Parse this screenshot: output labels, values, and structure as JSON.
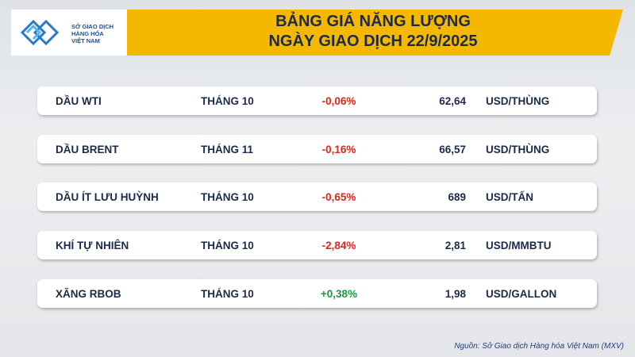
{
  "header": {
    "logo": [
      "SỞ GIAO DỊCH",
      "HÀNG HÓA",
      "VIỆT NAM"
    ],
    "title": [
      "BẢNG GIÁ NĂNG LƯỢNG",
      "NGÀY GIAO DỊCH 22/9/2025"
    ]
  },
  "table": {
    "rows": [
      [
        "DẦU WTI",
        "THÁNG 10",
        "-0,06%",
        "62,64",
        "USD/THÙNG"
      ],
      [
        "DẦU BRENT",
        "THÁNG 11",
        "-0,16%",
        "66,57",
        "USD/THÙNG"
      ],
      [
        "DẦU ÍT LƯU HUỲNH",
        "THÁNG 10",
        "-0,65%",
        "689",
        "USD/TẤN"
      ],
      [
        "KHÍ TỰ NHIÊN",
        "THÁNG 10",
        "-2,84%",
        "2,81",
        "USD/MMBTU"
      ],
      [
        "XĂNG RBOB",
        "THÁNG 10",
        "+0,38%",
        "1,98",
        "USD/GALLON"
      ]
    ]
  },
  "source": "Nguồn: Sở Giao dịch Hàng hóa Việt Nam (MXV)"
}
